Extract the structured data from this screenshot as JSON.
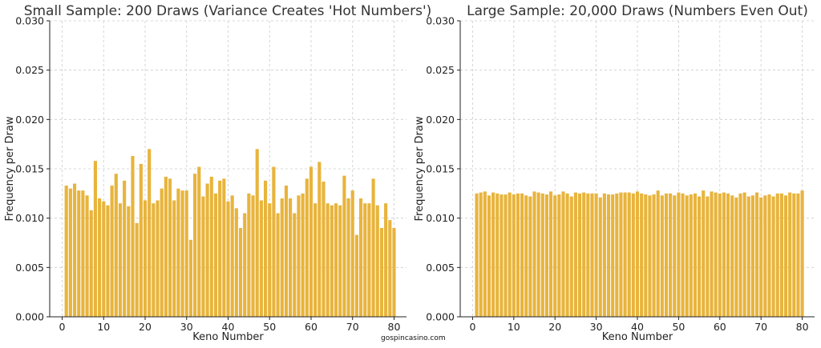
{
  "watermark": "gospincasino.com",
  "bar_color": "#E8B43C",
  "chart_data": [
    {
      "type": "bar",
      "title": "Small Sample: 200 Draws (Variance Creates 'Hot Numbers')",
      "xlabel": "Keno Number",
      "ylabel": "Frequency per Draw",
      "xlim": [
        -3,
        83
      ],
      "ylim": [
        0,
        0.03
      ],
      "xticks": [
        0,
        10,
        20,
        30,
        40,
        50,
        60,
        70,
        80
      ],
      "yticks": [
        0.0,
        0.005,
        0.01,
        0.015,
        0.02,
        0.025,
        0.03
      ],
      "ytick_labels": [
        "0.000",
        "0.005",
        "0.010",
        "0.015",
        "0.020",
        "0.025",
        "0.030"
      ],
      "grid": true,
      "categories": [
        1,
        2,
        3,
        4,
        5,
        6,
        7,
        8,
        9,
        10,
        11,
        12,
        13,
        14,
        15,
        16,
        17,
        18,
        19,
        20,
        21,
        22,
        23,
        24,
        25,
        26,
        27,
        28,
        29,
        30,
        31,
        32,
        33,
        34,
        35,
        36,
        37,
        38,
        39,
        40,
        41,
        42,
        43,
        44,
        45,
        46,
        47,
        48,
        49,
        50,
        51,
        52,
        53,
        54,
        55,
        56,
        57,
        58,
        59,
        60,
        61,
        62,
        63,
        64,
        65,
        66,
        67,
        68,
        69,
        70,
        71,
        72,
        73,
        74,
        75,
        76,
        77,
        78,
        79,
        80
      ],
      "values": [
        0.0133,
        0.013,
        0.0135,
        0.0128,
        0.0128,
        0.0123,
        0.0108,
        0.0158,
        0.012,
        0.0117,
        0.0113,
        0.0133,
        0.0145,
        0.0115,
        0.0138,
        0.0112,
        0.0163,
        0.0095,
        0.0155,
        0.0118,
        0.017,
        0.0115,
        0.0118,
        0.013,
        0.0142,
        0.014,
        0.0118,
        0.013,
        0.0128,
        0.0128,
        0.0078,
        0.0145,
        0.0152,
        0.0122,
        0.0135,
        0.0142,
        0.0125,
        0.0138,
        0.014,
        0.0117,
        0.0123,
        0.011,
        0.009,
        0.0105,
        0.0125,
        0.0123,
        0.017,
        0.0118,
        0.0138,
        0.0115,
        0.0152,
        0.0105,
        0.012,
        0.0133,
        0.012,
        0.0105,
        0.0123,
        0.0125,
        0.014,
        0.0152,
        0.0115,
        0.0157,
        0.0137,
        0.0115,
        0.0113,
        0.0115,
        0.0113,
        0.0143,
        0.012,
        0.0128,
        0.0083,
        0.012,
        0.0115,
        0.0115,
        0.014,
        0.0113,
        0.009,
        0.0115,
        0.0098,
        0.009
      ]
    },
    {
      "type": "bar",
      "title": "Large Sample: 20,000 Draws (Numbers Even Out)",
      "xlabel": "Keno Number",
      "ylabel": "Frequency per Draw",
      "xlim": [
        -3,
        83
      ],
      "ylim": [
        0,
        0.03
      ],
      "xticks": [
        0,
        10,
        20,
        30,
        40,
        50,
        60,
        70,
        80
      ],
      "yticks": [
        0.0,
        0.005,
        0.01,
        0.015,
        0.02,
        0.025,
        0.03
      ],
      "ytick_labels": [
        "0.000",
        "0.005",
        "0.010",
        "0.015",
        "0.020",
        "0.025",
        "0.030"
      ],
      "grid": true,
      "categories": [
        1,
        2,
        3,
        4,
        5,
        6,
        7,
        8,
        9,
        10,
        11,
        12,
        13,
        14,
        15,
        16,
        17,
        18,
        19,
        20,
        21,
        22,
        23,
        24,
        25,
        26,
        27,
        28,
        29,
        30,
        31,
        32,
        33,
        34,
        35,
        36,
        37,
        38,
        39,
        40,
        41,
        42,
        43,
        44,
        45,
        46,
        47,
        48,
        49,
        50,
        51,
        52,
        53,
        54,
        55,
        56,
        57,
        58,
        59,
        60,
        61,
        62,
        63,
        64,
        65,
        66,
        67,
        68,
        69,
        70,
        71,
        72,
        73,
        74,
        75,
        76,
        77,
        78,
        79,
        80
      ],
      "values": [
        0.0125,
        0.0126,
        0.0127,
        0.0123,
        0.0126,
        0.0125,
        0.0124,
        0.0124,
        0.0126,
        0.0124,
        0.0125,
        0.0125,
        0.0123,
        0.0122,
        0.0127,
        0.0126,
        0.0125,
        0.0124,
        0.0127,
        0.0123,
        0.0124,
        0.0127,
        0.0125,
        0.0122,
        0.0126,
        0.0125,
        0.0126,
        0.0125,
        0.0125,
        0.0125,
        0.0121,
        0.0125,
        0.0124,
        0.0124,
        0.0125,
        0.0126,
        0.0126,
        0.0126,
        0.0125,
        0.0127,
        0.0125,
        0.0124,
        0.0123,
        0.0124,
        0.0128,
        0.0123,
        0.0125,
        0.0125,
        0.0123,
        0.0126,
        0.0125,
        0.0123,
        0.0124,
        0.0125,
        0.0122,
        0.0128,
        0.0122,
        0.0127,
        0.0126,
        0.0125,
        0.0126,
        0.0125,
        0.0123,
        0.0121,
        0.0125,
        0.0126,
        0.0122,
        0.0123,
        0.0126,
        0.0121,
        0.0123,
        0.0124,
        0.0122,
        0.0125,
        0.0125,
        0.0123,
        0.0126,
        0.0125,
        0.0125,
        0.0128
      ]
    }
  ]
}
